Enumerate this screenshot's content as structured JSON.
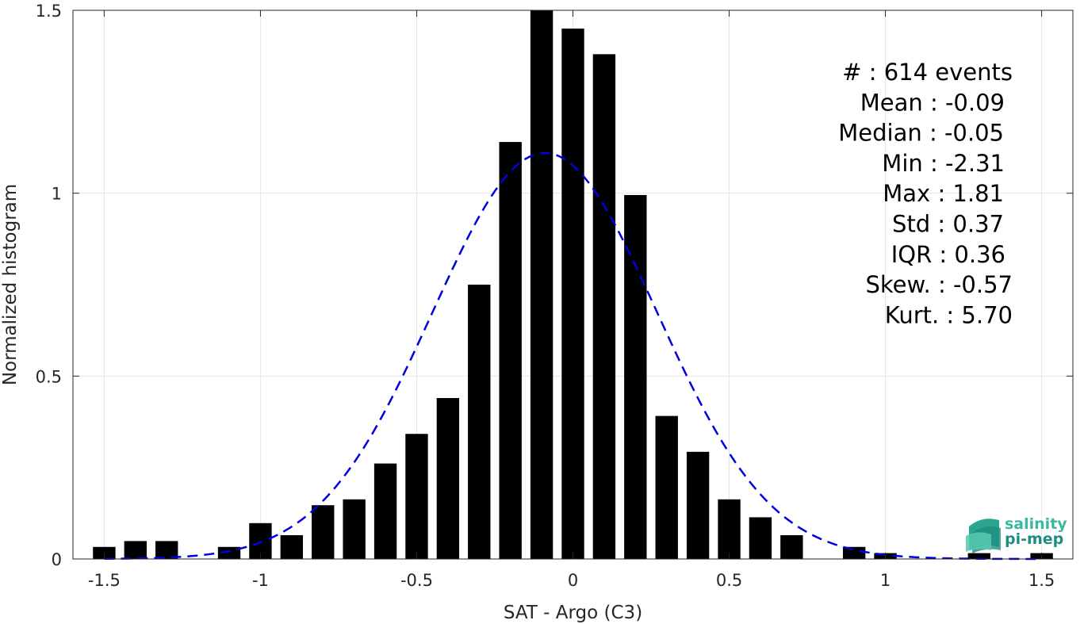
{
  "chart_data": {
    "type": "bar",
    "xlabel": "SAT - Argo (C3)",
    "ylabel": "Normalized histogram",
    "xlim": [
      -1.6,
      1.6
    ],
    "ylim": [
      0,
      1.5
    ],
    "grid": true,
    "x_ticks": [
      {
        "value": -1.5,
        "label": "-1.5"
      },
      {
        "value": -1,
        "label": "-1"
      },
      {
        "value": -0.5,
        "label": "-0.5"
      },
      {
        "value": 0,
        "label": "0"
      },
      {
        "value": 0.5,
        "label": "0.5"
      },
      {
        "value": 1,
        "label": "1"
      },
      {
        "value": 1.5,
        "label": "1.5"
      }
    ],
    "y_ticks": [
      {
        "value": 0,
        "label": "0"
      },
      {
        "value": 0.5,
        "label": "0.5"
      },
      {
        "value": 1,
        "label": "1"
      },
      {
        "value": 1.5,
        "label": "1.5"
      }
    ],
    "bin_width": 0.1,
    "bars": [
      {
        "x": -1.5,
        "value": 0.033
      },
      {
        "x": -1.4,
        "value": 0.049
      },
      {
        "x": -1.3,
        "value": 0.049
      },
      {
        "x": -1.1,
        "value": 0.033
      },
      {
        "x": -1.0,
        "value": 0.098
      },
      {
        "x": -0.9,
        "value": 0.065
      },
      {
        "x": -0.8,
        "value": 0.147
      },
      {
        "x": -0.7,
        "value": 0.163
      },
      {
        "x": -0.6,
        "value": 0.261
      },
      {
        "x": -0.5,
        "value": 0.342
      },
      {
        "x": -0.4,
        "value": 0.44
      },
      {
        "x": -0.3,
        "value": 0.75
      },
      {
        "x": -0.2,
        "value": 1.14
      },
      {
        "x": -0.1,
        "value": 1.5
      },
      {
        "x": 0.0,
        "value": 1.45
      },
      {
        "x": 0.1,
        "value": 1.38
      },
      {
        "x": 0.2,
        "value": 0.995
      },
      {
        "x": 0.3,
        "value": 0.391
      },
      {
        "x": 0.4,
        "value": 0.293
      },
      {
        "x": 0.5,
        "value": 0.163
      },
      {
        "x": 0.6,
        "value": 0.114
      },
      {
        "x": 0.7,
        "value": 0.065
      },
      {
        "x": 0.9,
        "value": 0.033
      },
      {
        "x": 1.0,
        "value": 0.016
      },
      {
        "x": 1.3,
        "value": 0.016
      },
      {
        "x": 1.5,
        "value": 0.016
      }
    ],
    "fit_curve": {
      "style": "dashed",
      "color": "#0000e0",
      "mean": -0.09,
      "std": 0.36,
      "amplitude": 1.11,
      "x_range": [
        -1.5,
        1.5
      ]
    },
    "stats": [
      {
        "label": "#  : 614 events"
      },
      {
        "label": "Mean : -0.09"
      },
      {
        "label": "Median : -0.05"
      },
      {
        "label": "Min : -2.31"
      },
      {
        "label": "Max : 1.81"
      },
      {
        "label": "Std : 0.37"
      },
      {
        "label": "IQR : 0.36"
      },
      {
        "label": "Skew. : -0.57"
      },
      {
        "label": "Kurt. : 5.70"
      }
    ]
  },
  "logo": {
    "line1": "salinity",
    "line2": "pi-mep",
    "color1": "#3db8a0",
    "color2": "#1e8e80"
  }
}
